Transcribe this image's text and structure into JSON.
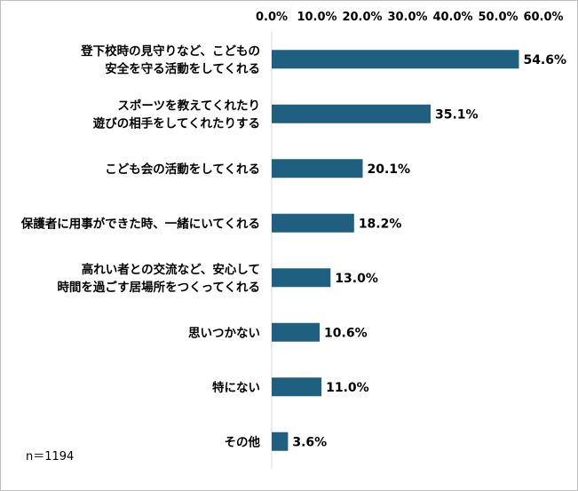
{
  "chart_data": {
    "type": "bar",
    "orientation": "horizontal",
    "title": "",
    "xlabel": "",
    "ylabel": "",
    "xlim": [
      0,
      60
    ],
    "ticks": [
      0,
      10,
      20,
      30,
      40,
      50,
      60
    ],
    "tick_labels": [
      "0.0%",
      "10.0%",
      "20.0%",
      "30.0%",
      "40.0%",
      "50.0%",
      "60.0%"
    ],
    "tick_position": "top",
    "grid": false,
    "bar_color": "#1F5F7F",
    "categories": [
      [
        "登下校時の見守りなど、こどもの",
        "安全を守る活動をしてくれる"
      ],
      [
        "スポーツを教えてくれたり",
        "遊びの相手をしてくれたりする"
      ],
      [
        "こども会の活動をしてくれる"
      ],
      [
        "保護者に用事ができた時、一緒にいてくれる"
      ],
      [
        "高れい者との交流など、安心して",
        "時間を過ごす居場所をつくってくれる"
      ],
      [
        "思いつかない"
      ],
      [
        "特にない"
      ],
      [
        "その他"
      ]
    ],
    "values": [
      54.6,
      35.1,
      20.1,
      18.2,
      13.0,
      10.6,
      11.0,
      3.6
    ],
    "value_labels": [
      "54.6%",
      "35.1%",
      "20.1%",
      "18.2%",
      "13.0%",
      "10.6%",
      "11.0%",
      "3.6%"
    ],
    "note": "n＝1194"
  }
}
